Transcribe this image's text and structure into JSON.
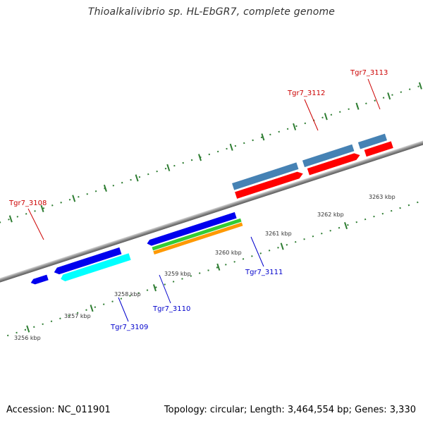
{
  "title": "Thioalkalivibrio sp. HL-EbGR7, complete genome",
  "footer": {
    "accession": "Accession: NC_011901",
    "summary": "Topology: circular; Length: 3,464,554 bp; Genes: 3,330"
  },
  "ticks": [
    "3256 kbp",
    "3257 kbp",
    "3258 kbp",
    "3259 kbp",
    "3260 kbp",
    "3261 kbp",
    "3262 kbp",
    "3263 kbp"
  ],
  "gene_labels": [
    {
      "text": "Tgr7_3108",
      "color": "#cc0000"
    },
    {
      "text": "Tgr7_3109",
      "color": "#0000cc"
    },
    {
      "text": "Tgr7_3110",
      "color": "#0000cc"
    },
    {
      "text": "Tgr7_3111",
      "color": "#0000cc"
    },
    {
      "text": "Tgr7_3112",
      "color": "#cc0000"
    },
    {
      "text": "Tgr7_3113",
      "color": "#cc0000"
    }
  ],
  "colors": {
    "backbone": "#8c8c8c",
    "tick_green": "#2e7d32",
    "cds_red": "#ff0000",
    "cds_blue": "#0000ee",
    "cds_cyan": "#00ffff",
    "cds_green": "#33cc33",
    "cds_orange": "#ff9900",
    "cds_steelblue": "#4682b4",
    "cds_khaki": "#c8b46e"
  }
}
